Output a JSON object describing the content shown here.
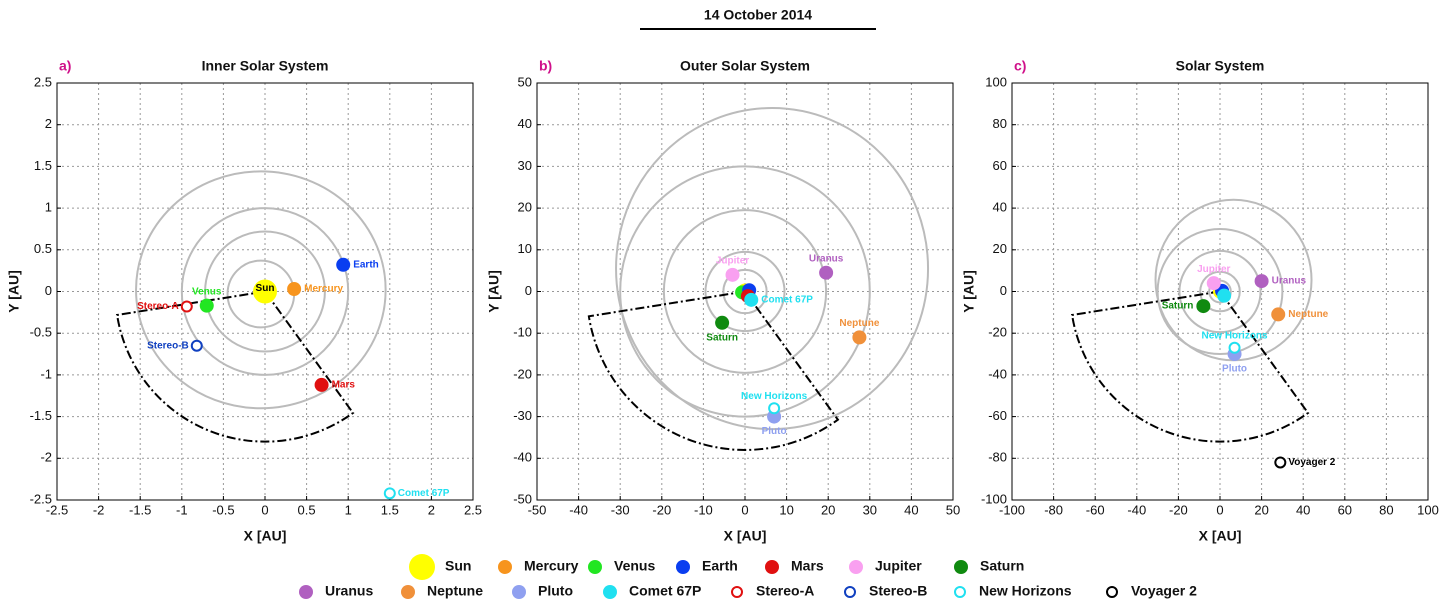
{
  "title": "14 October 2014",
  "chart_data": [
    {
      "type": "scatter",
      "panel": "a)",
      "title": "Inner Solar System",
      "xlabel": "X [AU]",
      "ylabel": "Y [AU]",
      "xlim": [
        -2.5,
        2.5
      ],
      "ylim": [
        -2.5,
        2.5
      ],
      "xticks": [
        -2.5,
        -2,
        -1.5,
        -1,
        -0.5,
        0,
        0.5,
        1,
        1.5,
        2,
        2.5
      ],
      "yticks": [
        -2.5,
        -2,
        -1.5,
        -1,
        -0.5,
        0,
        0.5,
        1,
        1.5,
        2,
        2.5
      ],
      "grid": true,
      "orbits": [
        {
          "cx": -0.05,
          "cy": -0.03,
          "rx": 0.4,
          "ry": 0.4
        },
        {
          "cx": 0,
          "cy": 0,
          "rx": 0.72,
          "ry": 0.72
        },
        {
          "cx": 0,
          "cy": 0,
          "rx": 1.0,
          "ry": 1.0
        },
        {
          "cx": -0.05,
          "cy": 0.02,
          "rx": 1.5,
          "ry": 1.42
        }
      ],
      "sector": {
        "radius": 1.8,
        "angles": [
          189,
          306
        ]
      },
      "points": [
        {
          "label": "Sun",
          "x": 0,
          "y": 0,
          "color": "#ffff00",
          "label_color": "#000000",
          "fill": true,
          "pos": "on"
        },
        {
          "label": "Mercury",
          "x": 0.35,
          "y": 0.03,
          "color": "#f7941d",
          "fill": true,
          "pos": "right"
        },
        {
          "label": "Venus",
          "x": -0.7,
          "y": -0.17,
          "color": "#22e622",
          "fill": true,
          "pos": "above"
        },
        {
          "label": "Earth",
          "x": 0.94,
          "y": 0.32,
          "color": "#0a3ef0",
          "fill": true,
          "pos": "right"
        },
        {
          "label": "Mars",
          "x": 0.68,
          "y": -1.12,
          "color": "#e01010",
          "fill": true,
          "pos": "right"
        },
        {
          "label": "Stereo-A",
          "x": -0.94,
          "y": -0.18,
          "color": "#e01010",
          "fill": false,
          "pos": "left"
        },
        {
          "label": "Stereo-B",
          "x": -0.82,
          "y": -0.65,
          "color": "#1040c0",
          "fill": false,
          "pos": "left"
        },
        {
          "label": "Comet 67P",
          "x": 1.5,
          "y": -2.42,
          "color": "#20e0f0",
          "fill": false,
          "pos": "right"
        }
      ]
    },
    {
      "type": "scatter",
      "panel": "b)",
      "title": "Outer Solar System",
      "xlabel": "X [AU]",
      "ylabel": "Y [AU]",
      "xlim": [
        -50,
        50
      ],
      "ylim": [
        -50,
        50
      ],
      "xticks": [
        -50,
        -40,
        -30,
        -20,
        -10,
        0,
        10,
        20,
        30,
        40,
        50
      ],
      "yticks": [
        -50,
        -40,
        -30,
        -20,
        -10,
        0,
        10,
        20,
        30,
        40,
        50
      ],
      "grid": true,
      "orbits": [
        {
          "cx": 0,
          "cy": 0,
          "rx": 1.5,
          "ry": 1.5
        },
        {
          "cx": 0,
          "cy": 0,
          "rx": 5.2,
          "ry": 5.2
        },
        {
          "cx": 0,
          "cy": 0,
          "rx": 9.5,
          "ry": 9.5
        },
        {
          "cx": 0,
          "cy": 0,
          "rx": 19.5,
          "ry": 19.5
        },
        {
          "cx": 0,
          "cy": 0,
          "rx": 30,
          "ry": 30
        },
        {
          "cx": 6.5,
          "cy": 5.5,
          "rx": 37.5,
          "ry": 38.5
        }
      ],
      "sector": {
        "radius": 38,
        "angles": [
          189,
          306
        ]
      },
      "points": [
        {
          "x": 0,
          "y": 0,
          "color": "#ffff00",
          "fill": true
        },
        {
          "x": 0.35,
          "y": 0,
          "color": "#f7941d",
          "fill": true
        },
        {
          "x": -0.7,
          "y": -0.2,
          "color": "#22e622",
          "fill": true
        },
        {
          "x": 1,
          "y": 0.3,
          "color": "#0a3ef0",
          "fill": true
        },
        {
          "x": 0.7,
          "y": -1.1,
          "color": "#e01010",
          "fill": true
        },
        {
          "label": "Jupiter",
          "x": -3,
          "y": 4,
          "color": "#f9a0f0",
          "fill": true,
          "pos": "above"
        },
        {
          "label": "Saturn",
          "x": -5.5,
          "y": -7.5,
          "color": "#108a10",
          "fill": true,
          "pos": "below"
        },
        {
          "label": "Uranus",
          "x": 19.5,
          "y": 4.5,
          "color": "#b060c0",
          "fill": true,
          "pos": "above"
        },
        {
          "label": "Neptune",
          "x": 27.5,
          "y": -11,
          "color": "#f0903a",
          "fill": true,
          "pos": "above"
        },
        {
          "label": "Pluto",
          "x": 7,
          "y": -30,
          "color": "#8fa0f0",
          "fill": true,
          "pos": "below"
        },
        {
          "label": "New Horizons",
          "x": 7,
          "y": -28,
          "color": "#20e0f0",
          "fill": false,
          "pos": "above"
        },
        {
          "label": "Comet 67P",
          "x": 1.5,
          "y": -2,
          "color": "#20e0f0",
          "fill": true,
          "pos": "right"
        }
      ]
    },
    {
      "type": "scatter",
      "panel": "c)",
      "title": "Solar System",
      "xlabel": "X [AU]",
      "ylabel": "Y [AU]",
      "xlim": [
        -100,
        100
      ],
      "ylim": [
        -100,
        100
      ],
      "xticks": [
        -100,
        -80,
        -60,
        -40,
        -20,
        0,
        20,
        40,
        60,
        80,
        100
      ],
      "yticks": [
        -100,
        -80,
        -60,
        -40,
        -20,
        0,
        20,
        40,
        60,
        80,
        100
      ],
      "grid": true,
      "orbits": [
        {
          "cx": 0,
          "cy": 0,
          "rx": 5.2,
          "ry": 5.2
        },
        {
          "cx": 0,
          "cy": 0,
          "rx": 9.5,
          "ry": 9.5
        },
        {
          "cx": 0,
          "cy": 0,
          "rx": 19.5,
          "ry": 19.5
        },
        {
          "cx": 0,
          "cy": 0,
          "rx": 30,
          "ry": 30
        },
        {
          "cx": 6.5,
          "cy": 5.5,
          "rx": 37.5,
          "ry": 38.5
        }
      ],
      "sector": {
        "radius": 72,
        "angles": [
          189,
          306
        ]
      },
      "points": [
        {
          "x": 0,
          "y": 0,
          "color": "#ffff00",
          "fill": true
        },
        {
          "x": 1,
          "y": 0.3,
          "color": "#0a3ef0",
          "fill": true
        },
        {
          "label": "Jupiter",
          "x": -3,
          "y": 4,
          "color": "#f9a0f0",
          "fill": true,
          "pos": "above"
        },
        {
          "label": "Saturn",
          "x": -8,
          "y": -7,
          "color": "#108a10",
          "fill": true,
          "pos": "left"
        },
        {
          "label": "Uranus",
          "x": 20,
          "y": 5,
          "color": "#b060c0",
          "fill": true,
          "pos": "right"
        },
        {
          "label": "Neptune",
          "x": 28,
          "y": -11,
          "color": "#f0903a",
          "fill": true,
          "pos": "right"
        },
        {
          "label": "Pluto",
          "x": 7,
          "y": -30,
          "color": "#8fa0f0",
          "fill": true,
          "pos": "below"
        },
        {
          "label": "New Horizons",
          "x": 7,
          "y": -27,
          "color": "#20e0f0",
          "fill": false,
          "pos": "above"
        },
        {
          "x": 2,
          "y": -2,
          "color": "#20e0f0",
          "fill": true
        },
        {
          "label": "Voyager 2",
          "x": 29,
          "y": -82,
          "color": "#000000",
          "fill": false,
          "pos": "right"
        }
      ]
    }
  ],
  "legend": [
    {
      "name": "Sun",
      "color": "#ffff00",
      "fill": true
    },
    {
      "name": "Mercury",
      "color": "#f7941d",
      "fill": true
    },
    {
      "name": "Venus",
      "color": "#22e622",
      "fill": true
    },
    {
      "name": "Earth",
      "color": "#0a3ef0",
      "fill": true
    },
    {
      "name": "Mars",
      "color": "#e01010",
      "fill": true
    },
    {
      "name": "Jupiter",
      "color": "#f9a0f0",
      "fill": true
    },
    {
      "name": "Saturn",
      "color": "#108a10",
      "fill": true
    },
    {
      "name": "Uranus",
      "color": "#b060c0",
      "fill": true
    },
    {
      "name": "Neptune",
      "color": "#f0903a",
      "fill": true
    },
    {
      "name": "Pluto",
      "color": "#8fa0f0",
      "fill": true
    },
    {
      "name": "Comet 67P",
      "color": "#20e0f0",
      "fill": true
    },
    {
      "name": "Stereo-A",
      "color": "#e01010",
      "fill": false
    },
    {
      "name": "Stereo-B",
      "color": "#1040c0",
      "fill": false
    },
    {
      "name": "New Horizons",
      "color": "#20e0f0",
      "fill": false
    },
    {
      "name": "Voyager 2",
      "color": "#000000",
      "fill": false
    }
  ]
}
